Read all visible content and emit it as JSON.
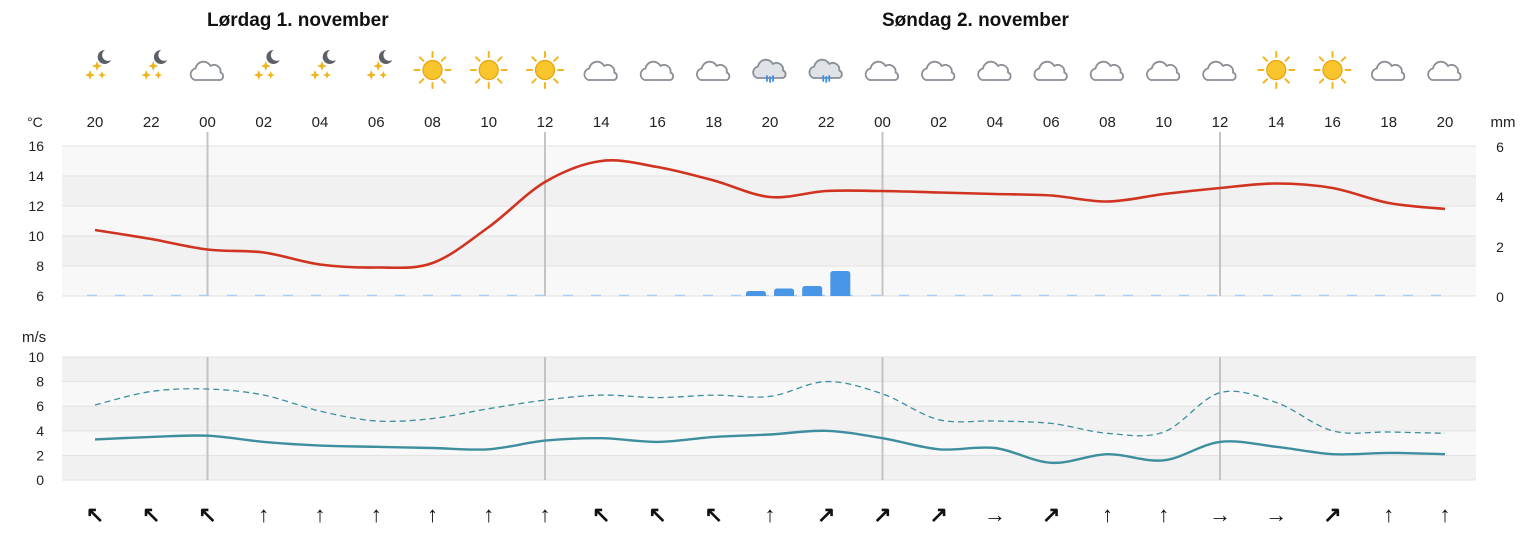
{
  "days": [
    {
      "label": "Lørdag 1. november"
    },
    {
      "label": "Søndag 2. november"
    }
  ],
  "chart_data": {
    "type": "line",
    "x": [
      "20",
      "22",
      "00",
      "02",
      "04",
      "06",
      "08",
      "10",
      "12",
      "14",
      "16",
      "18",
      "20",
      "22",
      "00",
      "02",
      "04",
      "06",
      "08",
      "10",
      "12",
      "14",
      "16",
      "18",
      "20"
    ],
    "weather_icons": [
      "clear-night-icon",
      "clear-night-icon",
      "cloud-icon",
      "clear-night-icon",
      "clear-night-icon",
      "clear-night-icon",
      "sun-icon",
      "sun-icon",
      "sun-icon",
      "cloud-icon",
      "cloud-icon",
      "cloud-icon",
      "rain-cloud-icon",
      "rain-cloud-icon",
      "cloud-icon",
      "cloud-icon",
      "cloud-icon",
      "cloud-icon",
      "cloud-icon",
      "cloud-icon",
      "cloud-icon",
      "sun-icon",
      "sun-icon",
      "cloud-icon",
      "cloud-icon"
    ],
    "wind_directions": [
      "↖",
      "↖",
      "↖",
      "↑",
      "↑",
      "↑",
      "↑",
      "↑",
      "↑",
      "↖",
      "↖",
      "↖",
      "↑",
      "↗",
      "↗",
      "↗",
      "→",
      "↗",
      "↑",
      "↑",
      "→",
      "→",
      "↗",
      "↑",
      "↑"
    ],
    "temperature": {
      "unit_label": "°C",
      "ylim": [
        6,
        16
      ],
      "ticks": [
        16,
        14,
        12,
        10,
        8,
        6
      ],
      "series": [
        {
          "color": "#d0331f",
          "values": [
            10.4,
            9.8,
            9.1,
            8.9,
            8.1,
            7.9,
            8.2,
            10.6,
            13.6,
            15.0,
            14.6,
            13.7,
            12.6,
            13.0,
            13.0,
            12.9,
            12.8,
            12.7,
            12.3,
            12.8,
            13.2,
            13.5,
            13.2,
            12.2,
            11.8
          ]
        }
      ]
    },
    "precipitation": {
      "unit_label": "mm",
      "ylim": [
        0,
        6
      ],
      "ticks": [
        6,
        4,
        2,
        0
      ],
      "color": "#4a96e6",
      "bars": [
        {
          "x_index": 11.75,
          "value": 0.2
        },
        {
          "x_index": 12.25,
          "value": 0.3
        },
        {
          "x_index": 12.75,
          "value": 0.4
        },
        {
          "x_index": 13.25,
          "value": 1.0
        }
      ]
    },
    "wind": {
      "unit_label": "m/s",
      "ylim": [
        0,
        10
      ],
      "ticks": [
        10,
        8,
        6,
        4,
        2,
        0
      ],
      "series": [
        {
          "color": "#3d8f9e",
          "style": "solid",
          "values": [
            3.3,
            3.5,
            3.6,
            3.1,
            2.8,
            2.7,
            2.6,
            2.5,
            3.2,
            3.4,
            3.1,
            3.5,
            3.7,
            4.0,
            3.4,
            2.5,
            2.6,
            1.4,
            2.1,
            1.6,
            3.1,
            2.7,
            2.1,
            2.2,
            2.1
          ]
        },
        {
          "color": "#3d8f9e",
          "style": "dashed",
          "values": [
            6.1,
            7.2,
            7.4,
            6.9,
            5.6,
            4.8,
            5.0,
            5.8,
            6.5,
            6.9,
            6.7,
            6.9,
            6.8,
            8.0,
            7.0,
            4.9,
            4.8,
            4.6,
            3.8,
            3.9,
            7.1,
            6.3,
            4.0,
            3.9,
            3.8
          ]
        }
      ]
    }
  }
}
